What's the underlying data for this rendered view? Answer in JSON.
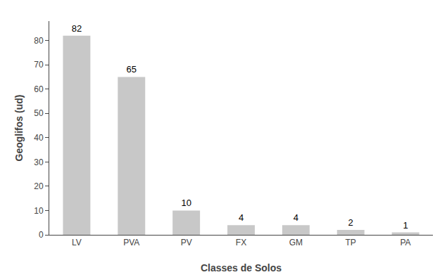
{
  "chart_data": {
    "type": "bar",
    "categories": [
      "LV",
      "PVA",
      "PV",
      "FX",
      "GM",
      "TP",
      "PA"
    ],
    "values": [
      82,
      65,
      10,
      4,
      4,
      2,
      1
    ],
    "color": "#c8c8c8",
    "xlabel": "Classes de Solos",
    "ylabel": "Geoglifos (ud)",
    "ylim": [
      0,
      88
    ],
    "yticks": [
      0,
      10,
      20,
      30,
      40,
      50,
      60,
      70,
      80
    ],
    "grid": false,
    "data_labels": true
  }
}
